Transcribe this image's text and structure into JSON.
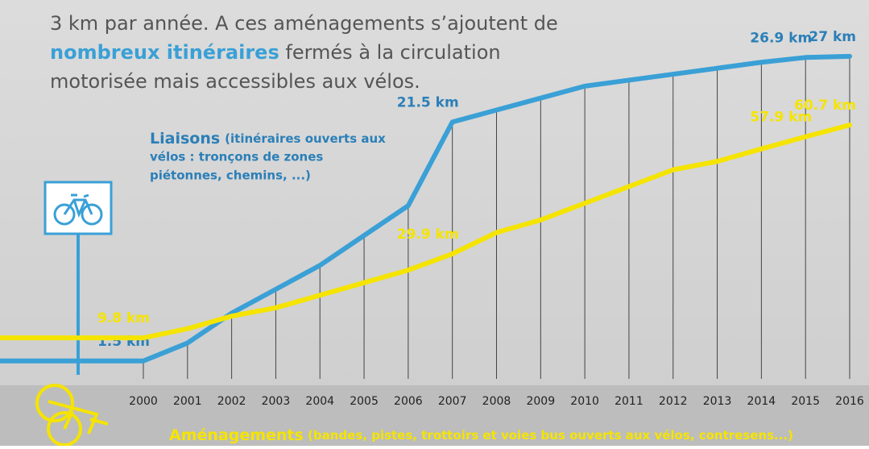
{
  "chart_data": {
    "type": "line",
    "intro": [
      [
        {
          "text": "3 km par année. A ces aménagements s’ajoutent de",
          "bold": false
        }
      ],
      [
        {
          "text": "nombreux itinéraires",
          "bold": true
        },
        {
          "text": " fermés à la circulation",
          "bold": false
        }
      ],
      [
        {
          "text": "motorisée mais accessibles aux vélos.",
          "bold": false
        }
      ]
    ],
    "x": [
      2000,
      2001,
      2002,
      2003,
      2004,
      2005,
      2006,
      2007,
      2008,
      2009,
      2010,
      2011,
      2012,
      2013,
      2014,
      2015,
      2016
    ],
    "xlim": [
      2000,
      2016
    ],
    "xticks": [
      2000,
      2001,
      2002,
      2003,
      2004,
      2005,
      2006,
      2007,
      2008,
      2009,
      2010,
      2011,
      2012,
      2013,
      2014,
      2015,
      2016
    ],
    "ylim": [
      0,
      28
    ],
    "y2lim": [
      0,
      80
    ],
    "series": [
      {
        "name": "Liaisons",
        "description": " (itinéraires ouverts aux vélos : tronçons de zones piétonnes, chemins, ...)",
        "color": "#3aa0d6",
        "values": [
          1.5,
          3,
          5.5,
          7.5,
          9.5,
          12,
          14.5,
          21.5,
          22.5,
          23.5,
          24.5,
          25,
          25.5,
          26,
          26.5,
          26.9,
          27
        ],
        "value_labels": [
          "1.5 km",
          null,
          null,
          null,
          null,
          null,
          null,
          "21.5 km",
          null,
          null,
          null,
          null,
          null,
          null,
          null,
          "26.9 km",
          "27 km"
        ]
      },
      {
        "name": "Aménagements",
        "description": " (bandes, pistes, trottoirs et voies bus ouverts aux vélos, contresens...)",
        "color": "#f5e400",
        "axis": "y2",
        "values": [
          9.8,
          12,
          15,
          17,
          20,
          23,
          26,
          29.9,
          35,
          38,
          42,
          46,
          50,
          52,
          55,
          57.9,
          60.7
        ],
        "value_labels": [
          "9.8 km",
          null,
          null,
          null,
          null,
          null,
          null,
          "29.9 km",
          null,
          null,
          null,
          null,
          null,
          null,
          null,
          "57.9 km",
          "60.7 km"
        ]
      }
    ]
  }
}
